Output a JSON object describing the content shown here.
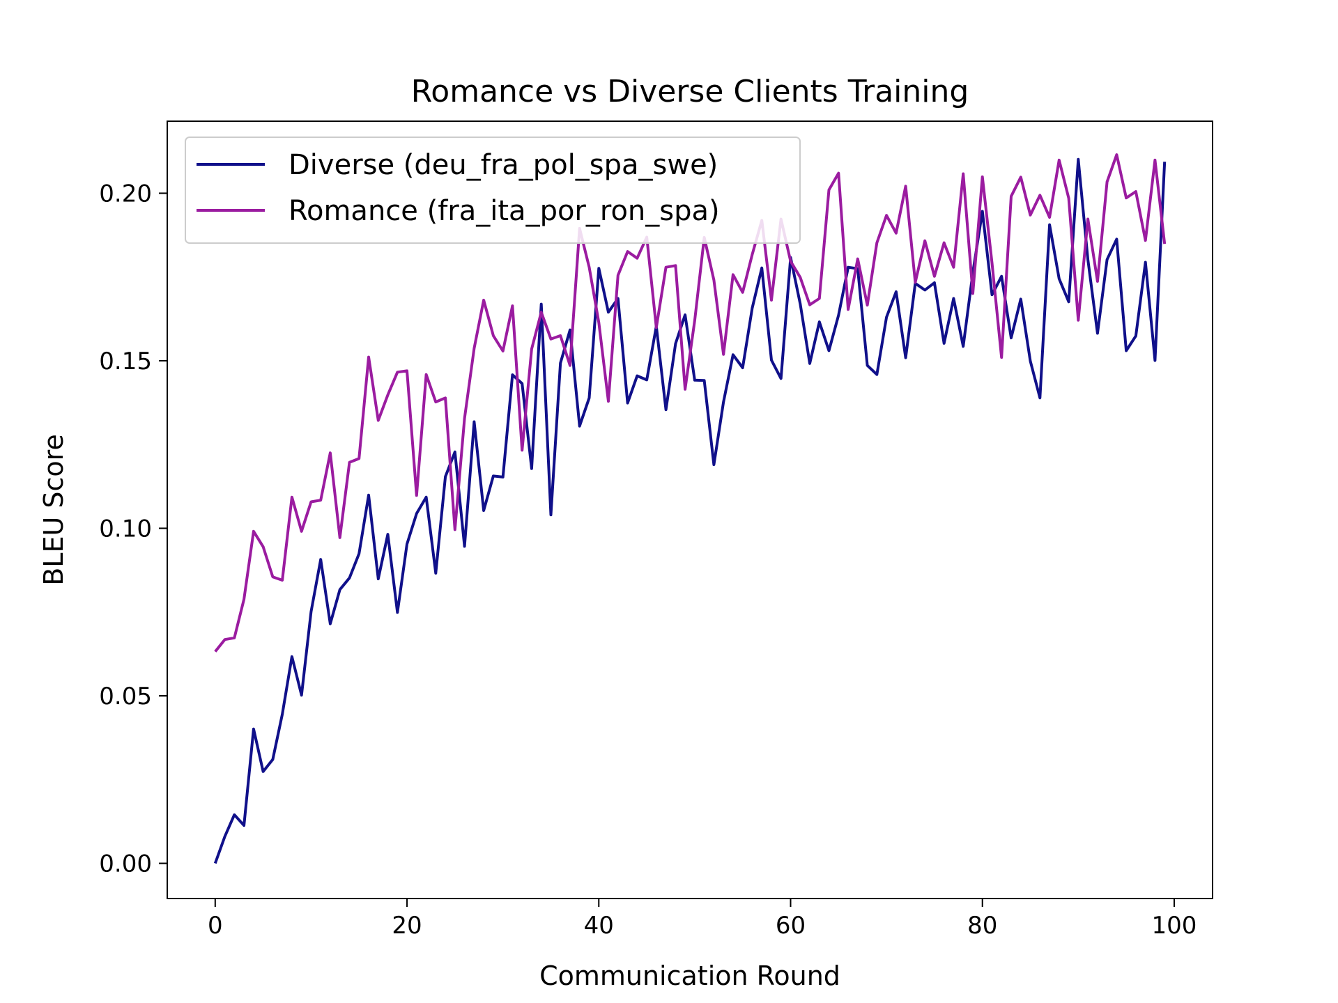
{
  "chart_data": {
    "type": "line",
    "title": "Romance vs Diverse Clients Training",
    "xlabel": "Communication Round",
    "ylabel": "BLEU Score",
    "xlim": [
      -5,
      104
    ],
    "ylim": [
      -0.0105,
      0.2215
    ],
    "xticks": [
      0,
      20,
      40,
      60,
      80,
      100
    ],
    "xtick_labels": [
      "0",
      "20",
      "40",
      "60",
      "80",
      "100"
    ],
    "yticks": [
      0.0,
      0.05,
      0.1,
      0.15,
      0.2
    ],
    "ytick_labels": [
      "0.00",
      "0.05",
      "0.10",
      "0.15",
      "0.20"
    ],
    "grid": false,
    "legend_position": "upper-left",
    "series": [
      {
        "name": "Diverse (deu_fra_pol_spa_swe)",
        "color": "#10108a",
        "values": [
          0.0,
          0.008,
          0.0145,
          0.0113,
          0.0401,
          0.0274,
          0.031,
          0.0445,
          0.0617,
          0.0502,
          0.0751,
          0.0907,
          0.0715,
          0.0817,
          0.0852,
          0.0924,
          0.1099,
          0.0849,
          0.0982,
          0.0749,
          0.0953,
          0.1044,
          0.1093,
          0.0866,
          0.1154,
          0.1228,
          0.0946,
          0.1318,
          0.1053,
          0.1156,
          0.1153,
          0.1458,
          0.1432,
          0.1178,
          0.1669,
          0.104,
          0.1493,
          0.1592,
          0.1305,
          0.1389,
          0.1776,
          0.1645,
          0.1686,
          0.1374,
          0.1455,
          0.1443,
          0.1603,
          0.1354,
          0.1551,
          0.1637,
          0.1442,
          0.1441,
          0.119,
          0.1377,
          0.1518,
          0.1479,
          0.1657,
          0.1777,
          0.1502,
          0.1447,
          0.1808,
          0.167,
          0.1492,
          0.1616,
          0.153,
          0.1636,
          0.1779,
          0.1775,
          0.1486,
          0.1459,
          0.163,
          0.1706,
          0.1509,
          0.1731,
          0.1711,
          0.1733,
          0.1552,
          0.1686,
          0.1543,
          0.1763,
          0.1946,
          0.1697,
          0.1752,
          0.1568,
          0.1684,
          0.1499,
          0.1389,
          0.1906,
          0.1745,
          0.1676,
          0.2101,
          0.1802,
          0.1582,
          0.1802,
          0.1863,
          0.153,
          0.1574,
          0.1794,
          0.1501,
          0.2094
        ]
      },
      {
        "name": "Romance (fra_ita_por_ron_spa)",
        "color": "#9b1ca0",
        "values": [
          0.0632,
          0.0668,
          0.0673,
          0.0788,
          0.0991,
          0.0945,
          0.0855,
          0.0845,
          0.1093,
          0.0991,
          0.1079,
          0.1084,
          0.1225,
          0.0972,
          0.1197,
          0.1208,
          0.1511,
          0.1322,
          0.1398,
          0.1466,
          0.147,
          0.1098,
          0.1459,
          0.1377,
          0.1389,
          0.0996,
          0.1328,
          0.1537,
          0.1681,
          0.1575,
          0.1529,
          0.1664,
          0.1233,
          0.1535,
          0.1645,
          0.1565,
          0.1575,
          0.1486,
          0.1895,
          0.1779,
          0.1614,
          0.1379,
          0.1755,
          0.1826,
          0.1806,
          0.1869,
          0.1599,
          0.1779,
          0.1784,
          0.1415,
          0.162,
          0.1868,
          0.1741,
          0.1519,
          0.1757,
          0.1704,
          0.1817,
          0.1919,
          0.1681,
          0.1923,
          0.1797,
          0.1749,
          0.1667,
          0.1686,
          0.201,
          0.206,
          0.1653,
          0.1804,
          0.1666,
          0.1852,
          0.1934,
          0.1881,
          0.2021,
          0.1734,
          0.1858,
          0.1752,
          0.1852,
          0.1779,
          0.2058,
          0.1701,
          0.2049,
          0.1792,
          0.151,
          0.1991,
          0.2048,
          0.1935,
          0.1994,
          0.1928,
          0.2099,
          0.1985,
          0.1621,
          0.1923,
          0.1737,
          0.2034,
          0.2115,
          0.1986,
          0.2005,
          0.1859,
          0.2099,
          0.1849
        ]
      }
    ]
  }
}
